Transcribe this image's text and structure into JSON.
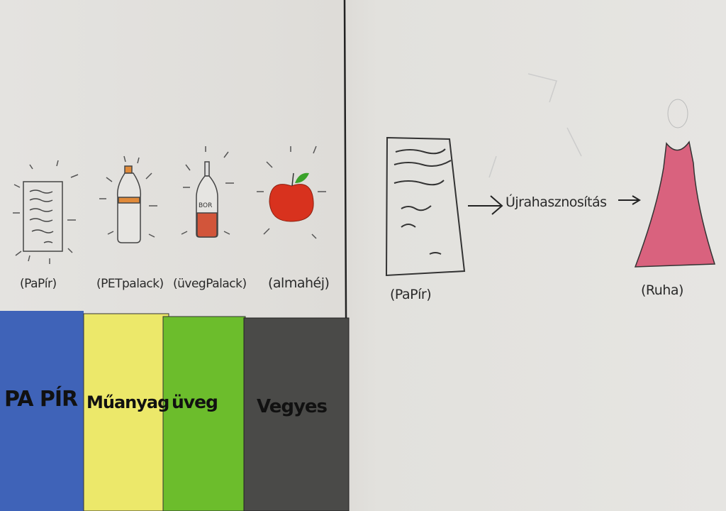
{
  "left": {
    "items": [
      {
        "label": "(PaPír)",
        "icon": "paper-sheet-icon"
      },
      {
        "label": "(PETpalack)",
        "icon": "plastic-bottle-icon"
      },
      {
        "label": "(üvegPalack)",
        "icon": "glass-bottle-icon",
        "bottle_text": "BOR"
      },
      {
        "label": "(almahéj)",
        "icon": "apple-icon"
      }
    ],
    "bins": [
      {
        "label": "PA PÍR",
        "color": "#3f63b8"
      },
      {
        "label": "Műanyag",
        "color": "#ece86a"
      },
      {
        "label": "üveg",
        "color": "#6cbd2c"
      },
      {
        "label": "Vegyes",
        "color": "#4a4a48"
      }
    ]
  },
  "right": {
    "source_label": "(PaPír)",
    "process_label": "Újrahasznosítás",
    "result_label": "(Ruha)",
    "dress_color": "#d9627e"
  }
}
